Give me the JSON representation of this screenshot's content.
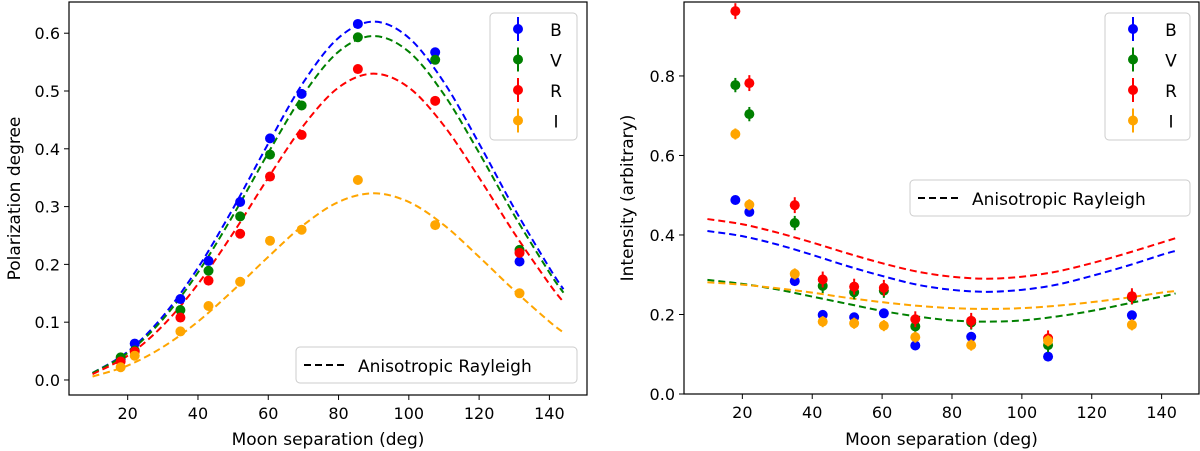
{
  "chart_data": [
    {
      "type": "scatter",
      "xlabel": "Moon separation (deg)",
      "ylabel": "Polarization degree",
      "xlim": [
        3.3,
        150.7
      ],
      "ylim": [
        -0.026,
        0.654
      ],
      "xticks": [
        20,
        40,
        60,
        80,
        100,
        120,
        140
      ],
      "yticks": [
        0.0,
        0.1,
        0.2,
        0.3,
        0.4,
        0.5,
        0.6
      ],
      "grid": false,
      "legend_placement": "upper right",
      "model_legend": {
        "label": "Anisotropic Rayleigh",
        "placement": "lower right"
      },
      "x": [
        18,
        22,
        35,
        43,
        52,
        60.5,
        69.5,
        85.5,
        107.5,
        131.5
      ],
      "series": [
        {
          "name": "B",
          "color": "#0000ff",
          "values": [
            0.035,
            0.063,
            0.14,
            0.206,
            0.308,
            0.418,
            0.495,
            0.616,
            0.567,
            0.205
          ],
          "err": 0.005
        },
        {
          "name": "V",
          "color": "#008000",
          "values": [
            0.039,
            0.051,
            0.121,
            0.189,
            0.283,
            0.39,
            0.475,
            0.593,
            0.554,
            0.225
          ],
          "err": 0.005
        },
        {
          "name": "R",
          "color": "#ff0000",
          "values": [
            0.032,
            0.049,
            0.108,
            0.172,
            0.253,
            0.352,
            0.424,
            0.538,
            0.483,
            0.22
          ],
          "err": 0.005
        },
        {
          "name": "I",
          "color": "#ffa500",
          "values": [
            0.022,
            0.042,
            0.084,
            0.128,
            0.17,
            0.241,
            0.26,
            0.346,
            0.268,
            0.15
          ],
          "err": 0.005
        }
      ],
      "model_x": [
        10,
        20,
        30,
        40,
        50,
        60,
        70,
        80,
        90,
        100,
        110,
        120,
        130,
        140,
        144
      ],
      "model_curves": [
        {
          "color": "#0000ff",
          "values": [
            0.012,
            0.049,
            0.11,
            0.194,
            0.297,
            0.409,
            0.515,
            0.592,
            0.62,
            0.592,
            0.515,
            0.409,
            0.297,
            0.194,
            0.157
          ]
        },
        {
          "color": "#008000",
          "values": [
            0.012,
            0.047,
            0.105,
            0.186,
            0.285,
            0.393,
            0.494,
            0.568,
            0.595,
            0.568,
            0.494,
            0.393,
            0.285,
            0.186,
            0.151
          ]
        },
        {
          "color": "#ff0000",
          "values": [
            0.01,
            0.042,
            0.094,
            0.166,
            0.254,
            0.35,
            0.44,
            0.506,
            0.53,
            0.506,
            0.44,
            0.35,
            0.254,
            0.166,
            0.135
          ]
        },
        {
          "color": "#ffa500",
          "values": [
            0.006,
            0.025,
            0.057,
            0.101,
            0.155,
            0.213,
            0.268,
            0.308,
            0.323,
            0.308,
            0.268,
            0.213,
            0.155,
            0.101,
            0.082
          ]
        }
      ]
    },
    {
      "type": "scatter",
      "xlabel": "Moon separation (deg)",
      "ylabel": "Intensity (arbitrary)",
      "xlim": [
        3.3,
        150.7
      ],
      "ylim": [
        0,
        0.986
      ],
      "xticks": [
        20,
        40,
        60,
        80,
        100,
        120,
        140
      ],
      "yticks": [
        0.0,
        0.2,
        0.4,
        0.6,
        0.8
      ],
      "grid": false,
      "legend_placement": "upper right",
      "model_legend": {
        "label": "Anisotropic Rayleigh",
        "placement": "center right"
      },
      "x": [
        18,
        22,
        35,
        43,
        52,
        60.5,
        69.5,
        85.5,
        107.5,
        131.5
      ],
      "series": [
        {
          "name": "B",
          "color": "#0000ff",
          "values": [
            0.488,
            0.458,
            0.284,
            0.199,
            0.193,
            0.203,
            0.122,
            0.144,
            0.094,
            0.198
          ],
          "err": 0.008
        },
        {
          "name": "V",
          "color": "#008000",
          "values": [
            0.777,
            0.704,
            0.43,
            0.272,
            0.256,
            0.26,
            0.17,
            0.18,
            0.123,
            0.243
          ],
          "err": 0.018
        },
        {
          "name": "R",
          "color": "#ff0000",
          "values": [
            0.963,
            0.782,
            0.475,
            0.288,
            0.27,
            0.267,
            0.188,
            0.184,
            0.14,
            0.246
          ],
          "err": 0.02
        },
        {
          "name": "I",
          "color": "#ffa500",
          "values": [
            0.654,
            0.476,
            0.302,
            0.182,
            0.178,
            0.172,
            0.143,
            0.123,
            0.134,
            0.174
          ],
          "err": 0.014
        }
      ],
      "model_x": [
        10,
        20,
        30,
        40,
        50,
        60,
        70,
        80,
        90,
        100,
        110,
        120,
        130,
        140,
        144
      ],
      "model_curves": [
        {
          "color": "#ff0000",
          "values": [
            0.44,
            0.427,
            0.406,
            0.381,
            0.354,
            0.329,
            0.308,
            0.295,
            0.29,
            0.295,
            0.308,
            0.329,
            0.354,
            0.381,
            0.392
          ]
        },
        {
          "color": "#0000ff",
          "values": [
            0.41,
            0.397,
            0.376,
            0.35,
            0.322,
            0.297,
            0.275,
            0.262,
            0.257,
            0.262,
            0.275,
            0.297,
            0.322,
            0.35,
            0.36
          ]
        },
        {
          "color": "#008000",
          "values": [
            0.287,
            0.277,
            0.263,
            0.245,
            0.227,
            0.209,
            0.195,
            0.185,
            0.182,
            0.185,
            0.195,
            0.209,
            0.227,
            0.245,
            0.253
          ]
        },
        {
          "color": "#ffa500",
          "values": [
            0.281,
            0.275,
            0.266,
            0.255,
            0.242,
            0.231,
            0.222,
            0.216,
            0.214,
            0.216,
            0.222,
            0.231,
            0.242,
            0.255,
            0.259
          ]
        }
      ]
    }
  ]
}
